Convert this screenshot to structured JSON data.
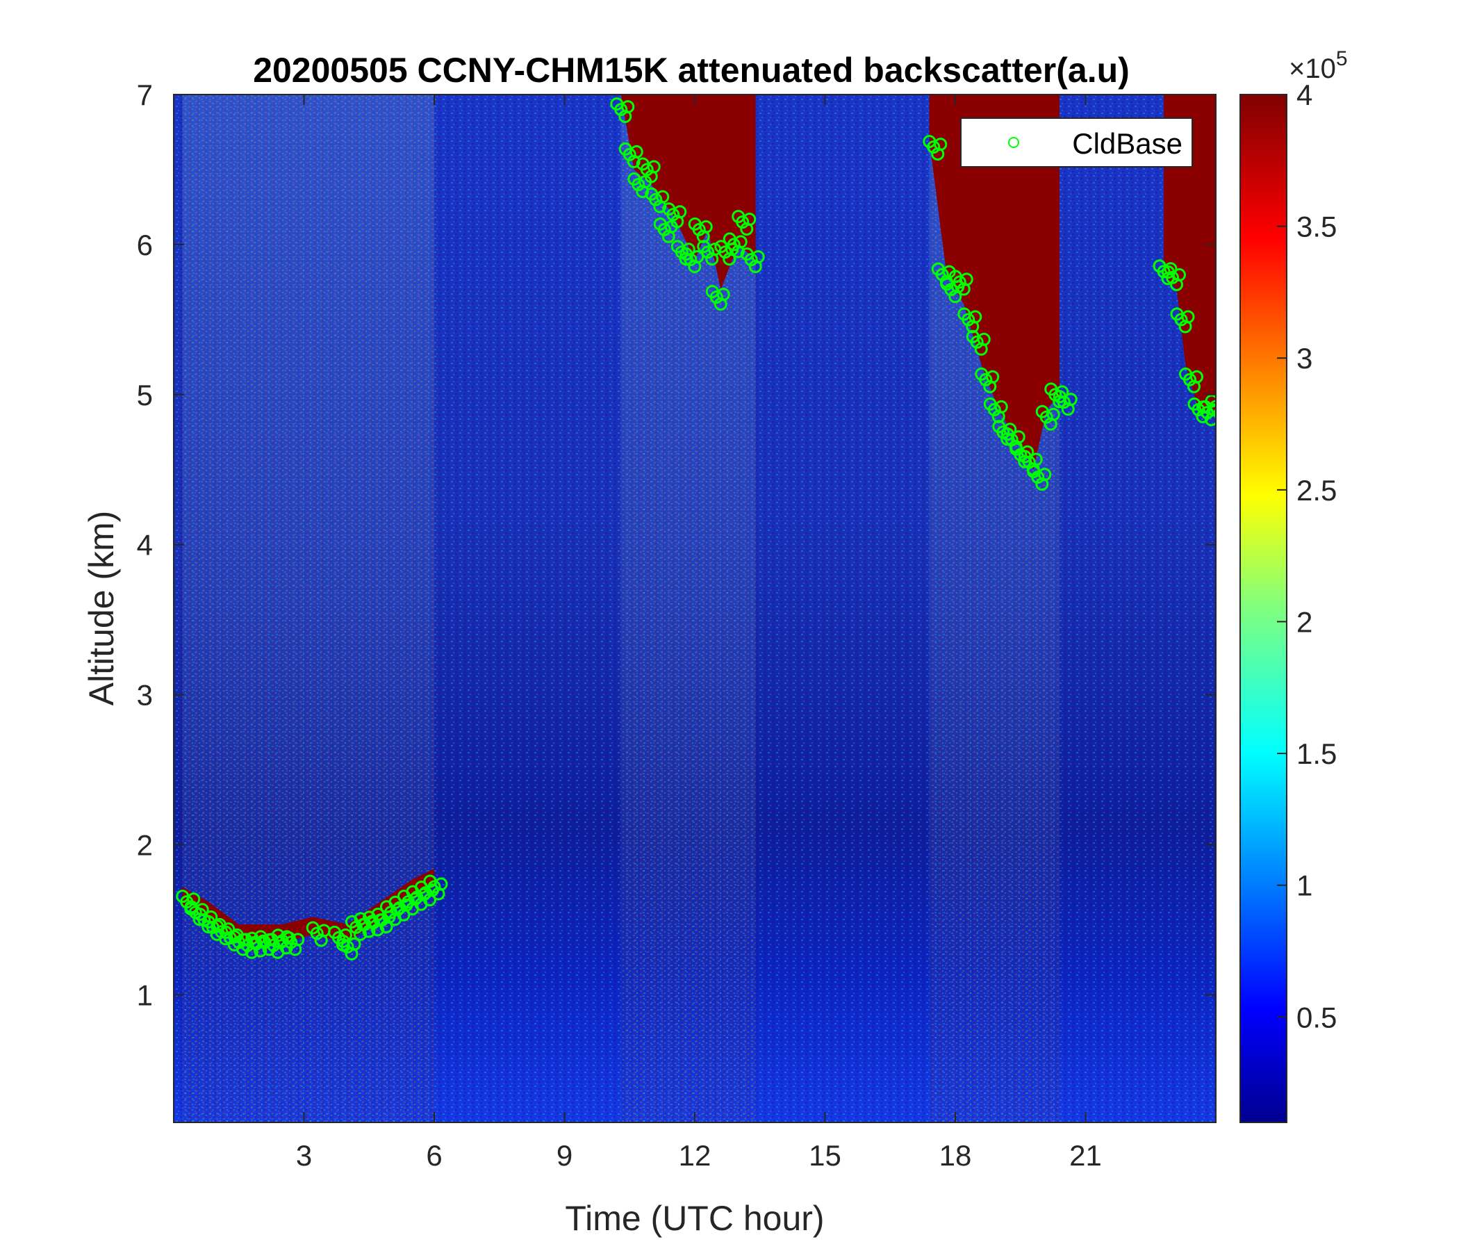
{
  "chart_data": {
    "type": "heatmap",
    "title": "20200505 CCNY-CHM15K attenuated backscatter(a.u)",
    "xlabel": "Time (UTC hour)",
    "ylabel": "Altitude (km)",
    "xlim": [
      0,
      24
    ],
    "ylim": [
      0.15,
      7
    ],
    "xticks": [
      3,
      6,
      9,
      12,
      15,
      18,
      21
    ],
    "yticks": [
      1,
      2,
      3,
      4,
      5,
      6,
      7
    ],
    "colorbar": {
      "colormap": "jet",
      "clim": [
        0.1,
        4
      ],
      "ticks": [
        0.5,
        1,
        1.5,
        2,
        2.5,
        3,
        3.5,
        4
      ],
      "exponent_label": "×10",
      "exponent_power": "5"
    },
    "legend": {
      "location": "top-right",
      "entries": [
        "CldBase"
      ]
    },
    "cloud_regions": [
      {
        "x_start": 10.3,
        "x_end": 13.4,
        "base_km": [
          [
            10.3,
            7.0
          ],
          [
            10.6,
            6.5
          ],
          [
            11.0,
            6.4
          ],
          [
            11.5,
            6.2
          ],
          [
            12.0,
            5.9
          ],
          [
            12.3,
            6.1
          ],
          [
            12.6,
            5.7
          ],
          [
            13.0,
            6.0
          ],
          [
            13.4,
            5.9
          ]
        ]
      },
      {
        "x_start": 17.4,
        "x_end": 20.4,
        "base_km": [
          [
            17.4,
            6.7
          ],
          [
            17.8,
            5.8
          ],
          [
            18.2,
            5.6
          ],
          [
            18.6,
            5.2
          ],
          [
            19.0,
            4.9
          ],
          [
            19.4,
            4.7
          ],
          [
            19.8,
            4.5
          ],
          [
            20.1,
            4.9
          ],
          [
            20.4,
            5.0
          ]
        ]
      },
      {
        "x_start": 22.8,
        "x_end": 24.0,
        "base_km": [
          [
            22.8,
            5.8
          ],
          [
            23.1,
            5.7
          ],
          [
            23.3,
            5.2
          ],
          [
            23.6,
            4.9
          ],
          [
            24.0,
            4.9
          ]
        ]
      },
      {
        "x_start": 0.2,
        "x_end": 6.0,
        "base_km": [
          [
            0.2,
            1.6
          ],
          [
            0.8,
            1.5
          ],
          [
            1.5,
            1.35
          ],
          [
            2.5,
            1.35
          ],
          [
            3.2,
            1.4
          ],
          [
            4.0,
            1.35
          ],
          [
            4.5,
            1.45
          ],
          [
            5.0,
            1.55
          ],
          [
            5.5,
            1.65
          ],
          [
            6.0,
            1.72
          ]
        ]
      }
    ],
    "series": [
      {
        "name": "CldBase",
        "marker": "circle",
        "color": "#00ff00",
        "x": [
          0.3,
          0.5,
          0.7,
          0.9,
          1.1,
          1.3,
          1.5,
          1.7,
          1.9,
          2.1,
          2.3,
          2.5,
          2.7,
          3.3,
          3.8,
          4.0,
          4.2,
          4.4,
          4.6,
          4.8,
          5.0,
          5.2,
          5.4,
          5.6,
          5.8,
          6.0,
          10.3,
          10.5,
          10.7,
          10.9,
          11.1,
          11.3,
          11.5,
          11.7,
          11.9,
          12.1,
          12.3,
          12.5,
          12.7,
          12.9,
          13.1,
          13.3,
          17.5,
          17.7,
          17.9,
          18.1,
          18.3,
          18.5,
          18.7,
          18.9,
          19.1,
          19.3,
          19.5,
          19.7,
          19.9,
          20.1,
          20.3,
          20.5,
          22.8,
          23.0,
          23.2,
          23.4,
          23.6,
          23.8,
          24.0
        ],
        "y": [
          1.62,
          1.55,
          1.5,
          1.45,
          1.42,
          1.38,
          1.35,
          1.33,
          1.34,
          1.35,
          1.33,
          1.36,
          1.35,
          1.41,
          1.38,
          1.32,
          1.45,
          1.47,
          1.48,
          1.5,
          1.55,
          1.58,
          1.62,
          1.65,
          1.68,
          1.72,
          6.9,
          6.6,
          6.4,
          6.5,
          6.3,
          6.1,
          6.2,
          5.95,
          5.9,
          6.1,
          5.95,
          5.65,
          5.95,
          6.0,
          6.15,
          5.9,
          6.65,
          5.8,
          5.7,
          5.75,
          5.5,
          5.35,
          5.1,
          4.9,
          4.75,
          4.7,
          4.6,
          4.55,
          4.45,
          4.85,
          5.0,
          4.95,
          5.82,
          5.78,
          5.5,
          5.1,
          4.9,
          4.88,
          4.92
        ]
      }
    ]
  }
}
